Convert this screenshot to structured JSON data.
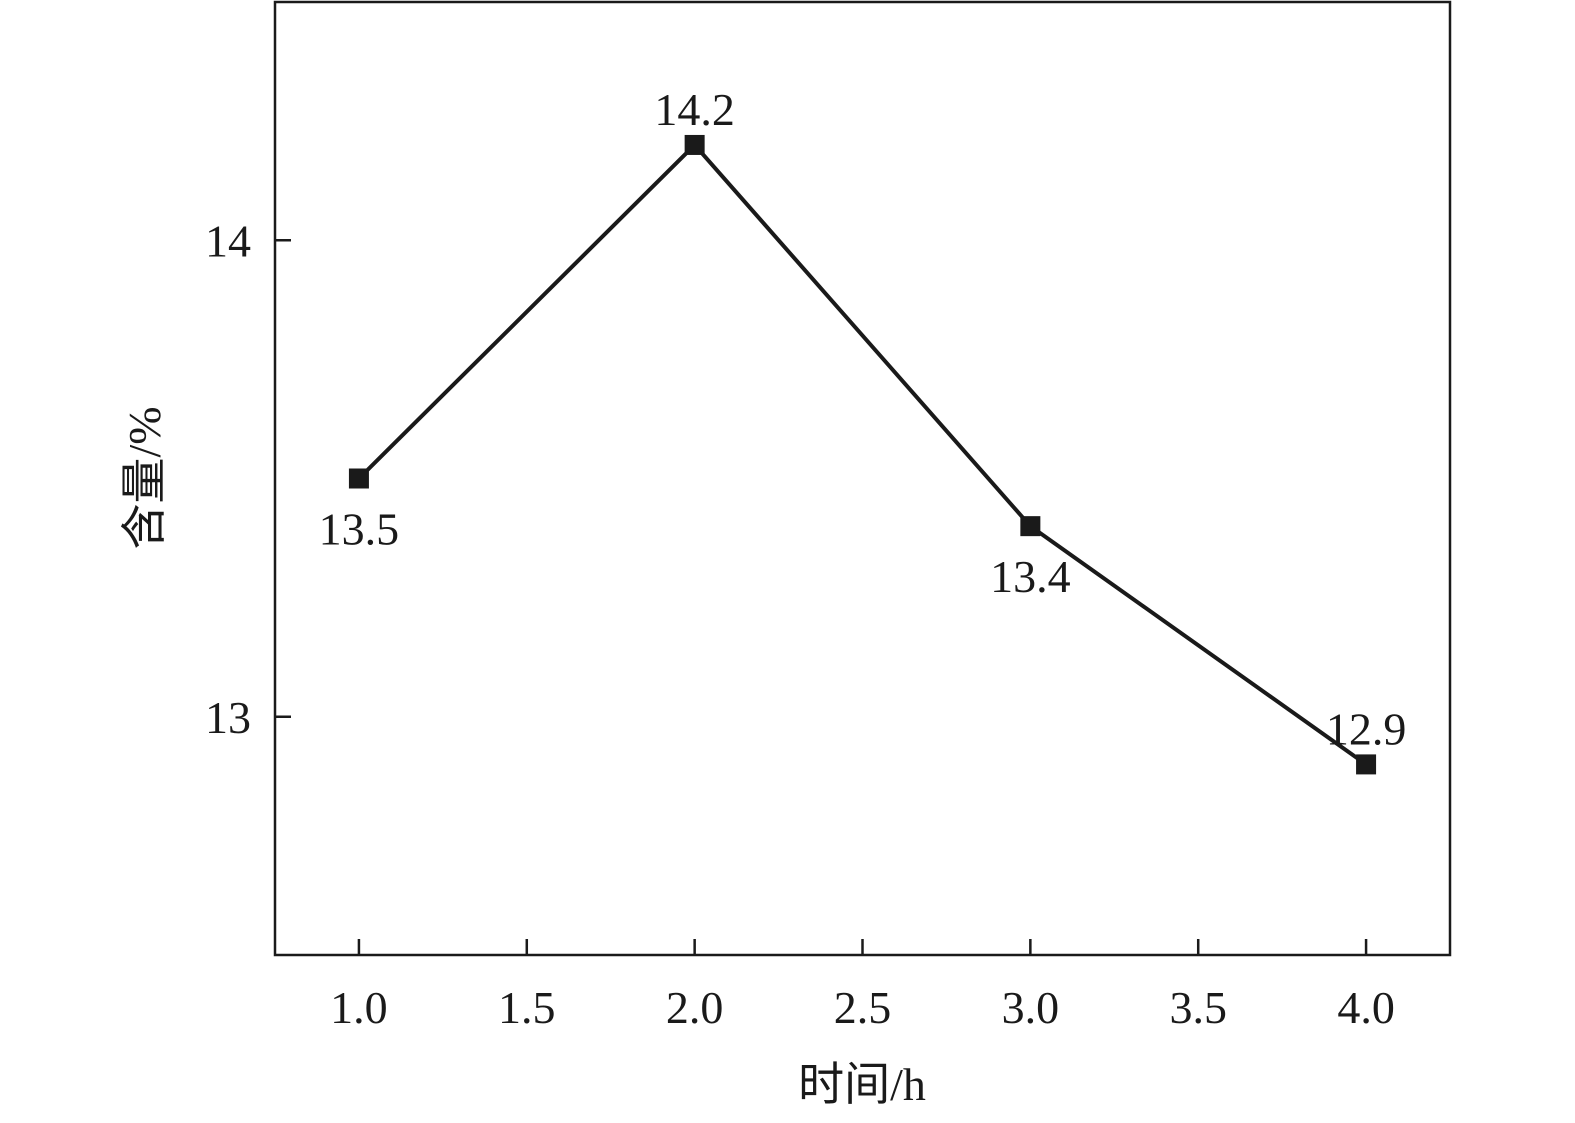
{
  "chart_data": {
    "type": "line",
    "title": "",
    "xlabel": "时间/h",
    "ylabel": "含量/%",
    "xlim": [
      0.75,
      4.25
    ],
    "ylim": [
      12.5,
      14.5
    ],
    "xticks": [
      1.0,
      1.5,
      2.0,
      2.5,
      3.0,
      3.5,
      4.0
    ],
    "xtick_labels": [
      "1.0",
      "1.5",
      "2.0",
      "2.5",
      "3.0",
      "3.5",
      "4.0"
    ],
    "yticks": [
      13,
      14
    ],
    "ytick_labels": [
      "13",
      "14"
    ],
    "grid": false,
    "marker": "square",
    "color": "#1a1a1a",
    "series": [
      {
        "x": [
          1.0,
          2.0,
          3.0,
          4.0
        ],
        "y": [
          13.5,
          14.2,
          13.4,
          12.9
        ],
        "data_labels": [
          "13.5",
          "14.2",
          "13.4",
          "12.9"
        ],
        "label_positions": [
          "below",
          "above",
          "below",
          "above"
        ]
      }
    ]
  }
}
